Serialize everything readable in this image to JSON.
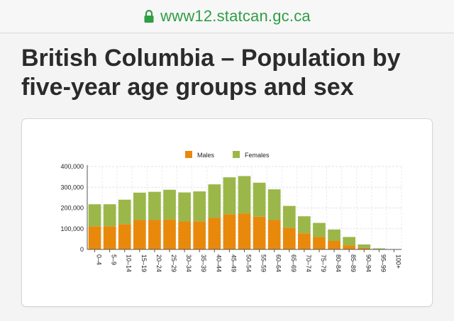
{
  "browser": {
    "url": "www12.statcan.gc.ca",
    "icon": "lock-icon",
    "url_color": "#2f9e44"
  },
  "page": {
    "title": "British Columbia – Population by five-year age groups and sex"
  },
  "colors": {
    "males": "#e8890c",
    "females": "#9bb74a"
  },
  "chart_data": {
    "type": "bar",
    "stacked": true,
    "categories": [
      "0–4",
      "5–9",
      "10–14",
      "15–19",
      "20–24",
      "25–29",
      "30–34",
      "35–39",
      "40–44",
      "45–49",
      "50–54",
      "55–59",
      "60–64",
      "65–69",
      "70–74",
      "75–79",
      "80–84",
      "85–89",
      "90–94",
      "95–99",
      "100+"
    ],
    "series": [
      {
        "name": "Males",
        "values": [
          112000,
          112000,
          122000,
          142000,
          142000,
          144000,
          135000,
          136000,
          152000,
          170000,
          174000,
          158000,
          142000,
          104000,
          78000,
          60000,
          41000,
          20000,
          7000,
          1000,
          0
        ]
      },
      {
        "name": "Females",
        "values": [
          106000,
          106000,
          118000,
          132000,
          136000,
          144000,
          140000,
          144000,
          162000,
          178000,
          180000,
          164000,
          148000,
          106000,
          82000,
          68000,
          55000,
          40000,
          17000,
          4000,
          200
        ]
      }
    ],
    "y_ticks": [
      "0",
      "100,000",
      "200,000",
      "300,000",
      "400,000"
    ],
    "ylim": [
      0,
      400000
    ],
    "legend": [
      "Males",
      "Females"
    ],
    "legend_position": "top",
    "grid": true
  }
}
